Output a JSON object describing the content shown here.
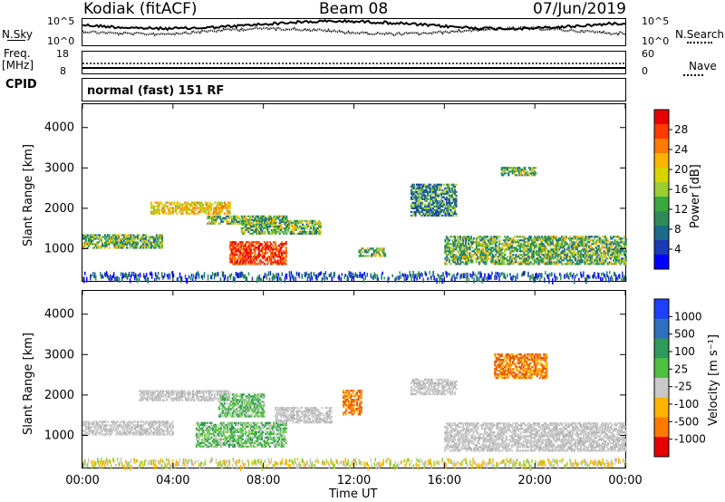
{
  "header": {
    "station": "Kodiak (fitACF)",
    "beam": "Beam 08",
    "date": "07/Jun/2019"
  },
  "noise_panel": {
    "left_label": "N.Sky",
    "right_label": "N.Search",
    "left_ticks": [
      "10^5",
      "10^0"
    ],
    "right_ticks": [
      "10^5",
      "10^0"
    ]
  },
  "freq_panel": {
    "left_label_1": "Freq.",
    "left_label_2": "[MHz]",
    "right_label": "Nave",
    "left_ticks": [
      "18",
      "8"
    ],
    "right_ticks": [
      "60",
      "0"
    ]
  },
  "cpid_panel": {
    "label": "CPID",
    "text": "normal (fast) 151 RF"
  },
  "colors": {
    "grey": "#c8c8c8",
    "red": "#e8000b",
    "green": "#2fb22f",
    "blue": "#1f3fff"
  },
  "chart_data": [
    {
      "type": "heatmap",
      "ylabel": "Slant Range [km]",
      "xlabel": "Time UT",
      "x_ticks": [
        "00:00",
        "04:00",
        "08:00",
        "12:00",
        "16:00",
        "20:00",
        "00:00"
      ],
      "y_ticks": [
        1000,
        2000,
        3000,
        4000
      ],
      "ylim": [
        180,
        4600
      ],
      "xlim_hours": [
        0,
        24
      ],
      "colorbar": {
        "label": "Power [dB]",
        "ticks": [
          "28",
          "24",
          "20",
          "16",
          "12",
          "8",
          "4"
        ],
        "colors": [
          "#e80000",
          "#ff3a00",
          "#ff7a00",
          "#ffb400",
          "#d7d400",
          "#9acd32",
          "#3aa83a",
          "#2e8b57",
          "#1a6a8a",
          "#1a3ab4",
          "#0000ff"
        ]
      },
      "regions": [
        {
          "t0": 0.0,
          "t1": 3.5,
          "r0": 1000,
          "r1": 1350,
          "level": "mid"
        },
        {
          "t0": 3.0,
          "t1": 6.5,
          "r0": 1850,
          "r1": 2150,
          "level": "high"
        },
        {
          "t0": 5.5,
          "t1": 9.0,
          "r0": 1600,
          "r1": 1800,
          "level": "mid"
        },
        {
          "t0": 6.5,
          "t1": 9.0,
          "r0": 600,
          "r1": 1150,
          "level": "max"
        },
        {
          "t0": 7.0,
          "t1": 10.5,
          "r0": 1350,
          "r1": 1700,
          "level": "mid"
        },
        {
          "t0": 12.2,
          "t1": 13.4,
          "r0": 800,
          "r1": 1000,
          "level": "mid"
        },
        {
          "t0": 14.5,
          "t1": 16.5,
          "r0": 1800,
          "r1": 2600,
          "level": "low"
        },
        {
          "t0": 16.0,
          "t1": 24.0,
          "r0": 600,
          "r1": 1300,
          "level": "mid"
        },
        {
          "t0": 18.5,
          "t1": 20.0,
          "r0": 2800,
          "r1": 3000,
          "level": "mid"
        }
      ]
    },
    {
      "type": "heatmap",
      "ylabel": "Slant Range [km]",
      "xlabel": "Time UT",
      "x_ticks": [
        "00:00",
        "04:00",
        "08:00",
        "12:00",
        "16:00",
        "20:00",
        "00:00"
      ],
      "y_ticks": [
        1000,
        2000,
        3000,
        4000
      ],
      "ylim": [
        180,
        4600
      ],
      "xlim_hours": [
        0,
        24
      ],
      "colorbar": {
        "label": "Velocity [m s⁻¹]",
        "ticks": [
          "1000",
          "500",
          "100",
          "25",
          "-25",
          "-100",
          "-500",
          "-1000"
        ],
        "colors": [
          "#1f3fff",
          "#2e6fbf",
          "#2f9a5a",
          "#4fc040",
          "#c8c8c8",
          "#ffb400",
          "#ff7a00",
          "#e80000"
        ]
      },
      "regions": [
        {
          "t0": 0.0,
          "t1": 4.0,
          "r0": 1000,
          "r1": 1350,
          "level": "grey"
        },
        {
          "t0": 2.5,
          "t1": 6.5,
          "r0": 1850,
          "r1": 2100,
          "level": "grey"
        },
        {
          "t0": 5.0,
          "t1": 9.0,
          "r0": 700,
          "r1": 1300,
          "level": "green"
        },
        {
          "t0": 6.0,
          "t1": 8.0,
          "r0": 1450,
          "r1": 2000,
          "level": "green"
        },
        {
          "t0": 8.5,
          "t1": 11.0,
          "r0": 1300,
          "r1": 1700,
          "level": "grey"
        },
        {
          "t0": 11.5,
          "t1": 12.3,
          "r0": 1500,
          "r1": 2100,
          "level": "orange"
        },
        {
          "t0": 16.0,
          "t1": 24.0,
          "r0": 600,
          "r1": 1300,
          "level": "grey"
        },
        {
          "t0": 18.2,
          "t1": 20.5,
          "r0": 2400,
          "r1": 3000,
          "level": "orange"
        },
        {
          "t0": 14.5,
          "t1": 16.5,
          "r0": 2000,
          "r1": 2400,
          "level": "grey"
        }
      ]
    }
  ]
}
